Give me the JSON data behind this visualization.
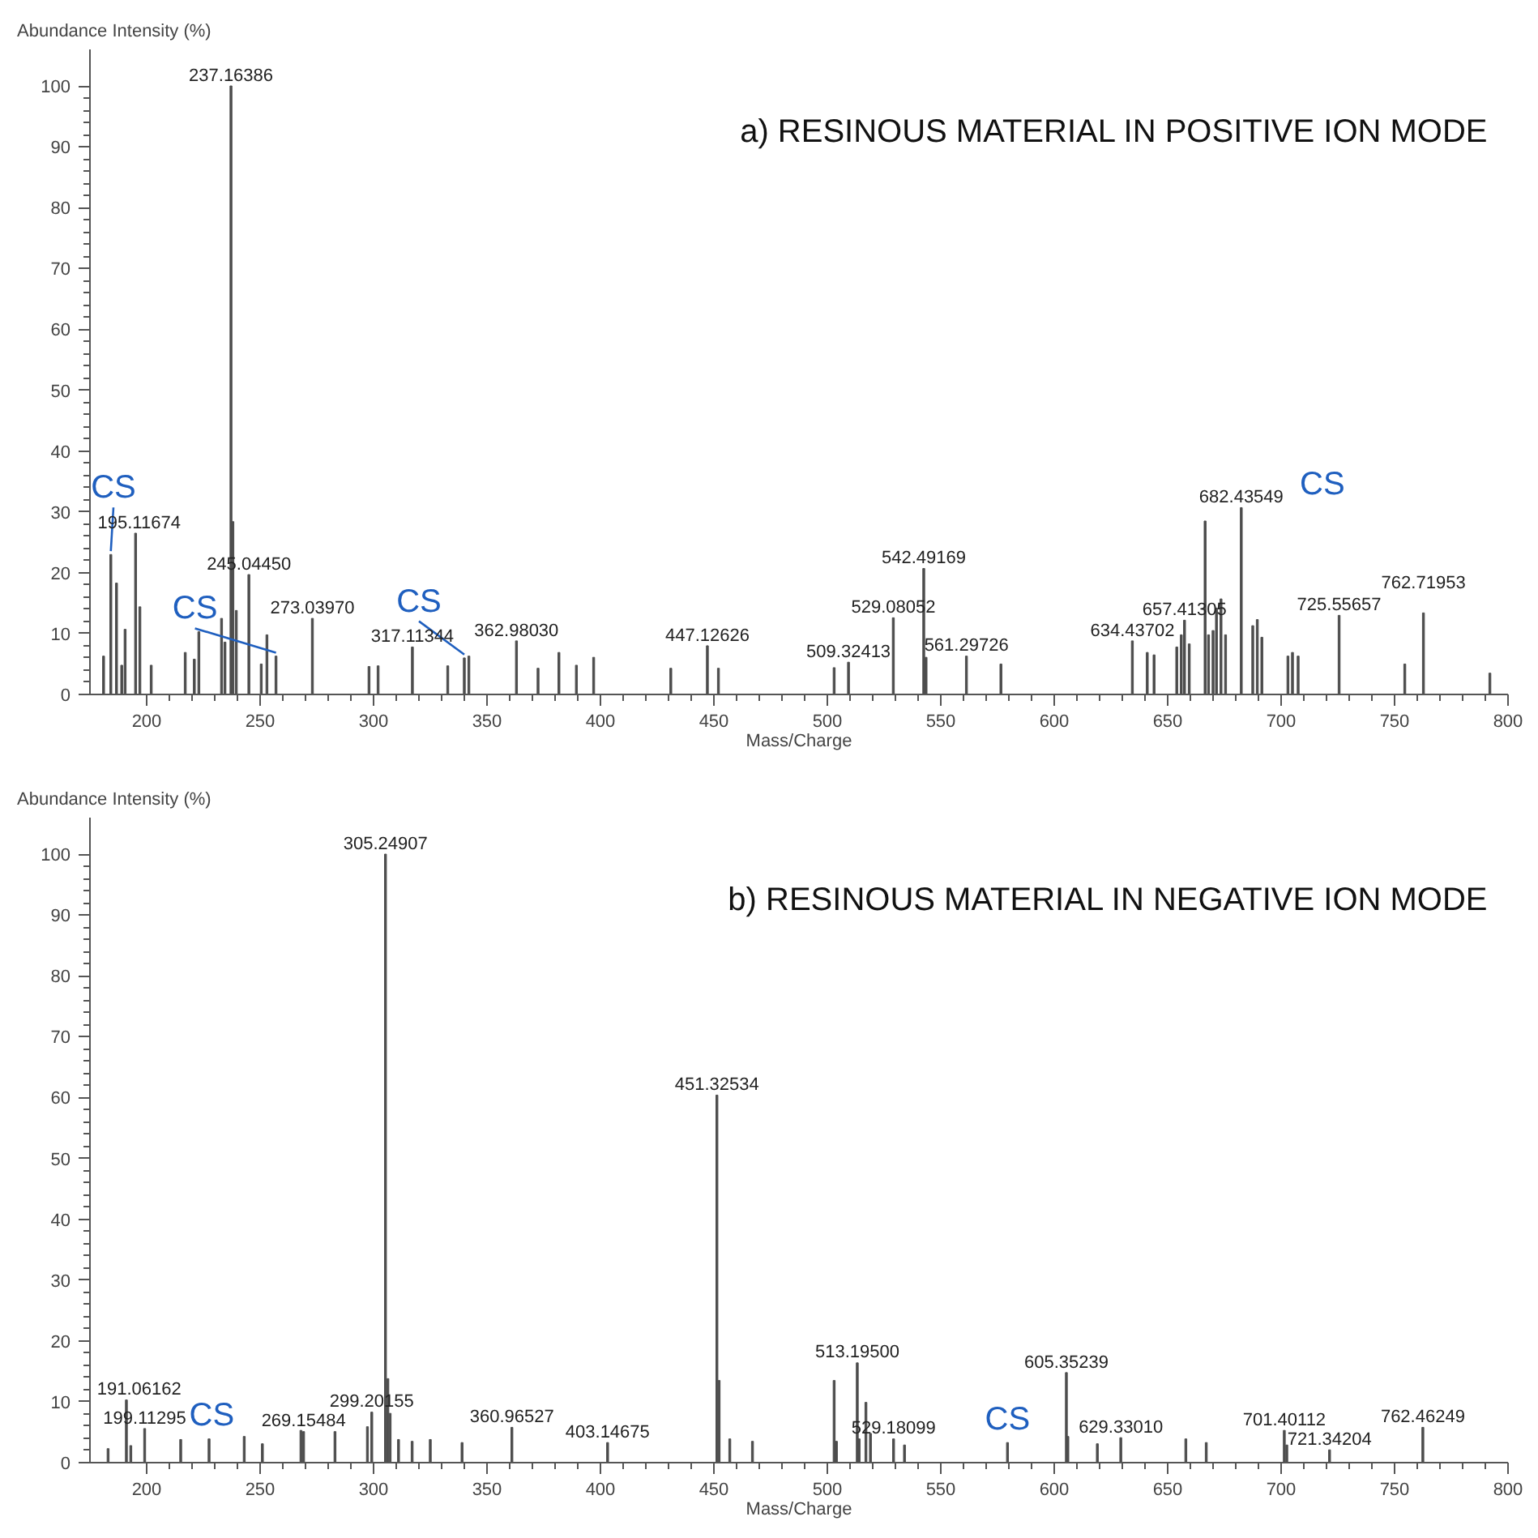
{
  "chart_data": [
    {
      "type": "bar",
      "title": "a) RESINOUS MATERIAL IN POSITIVE ION MODE",
      "ylabel": "Abundance Intensity (%)",
      "xlabel": "Mass/Charge",
      "color": "#4d4d4d",
      "x": [
        181,
        184.2,
        186.7,
        189,
        190.5,
        195.11674,
        197,
        202,
        217,
        221,
        223,
        233,
        234.5,
        237.16386,
        238,
        239.5,
        245.0445,
        250.5,
        253,
        257,
        273.0397,
        298,
        302,
        317.11344,
        332.7,
        340,
        342,
        362.9803,
        372.5,
        381.7,
        389.4,
        397,
        431,
        447.12626,
        452,
        503,
        509.32413,
        529.08052,
        542.49169,
        543.5,
        561.29726,
        576.5,
        634.43702,
        641,
        644,
        654,
        656,
        657.41305,
        659.5,
        666.5,
        668,
        670,
        671.5,
        673.5,
        675.5,
        682.43549,
        687.5,
        689.5,
        691.5,
        703,
        705,
        707.5,
        725.55657,
        754.5,
        762.71953,
        792
      ],
      "values": [
        6.3,
        23.0,
        18.3,
        4.8,
        10.7,
        26.5,
        14.4,
        4.8,
        6.9,
        5.8,
        10.3,
        12.5,
        8.6,
        100,
        28.4,
        13.8,
        19.7,
        5.0,
        9.8,
        6.3,
        12.5,
        4.6,
        4.7,
        7.8,
        4.7,
        6.0,
        6.3,
        8.8,
        4.3,
        6.9,
        4.8,
        6.1,
        4.3,
        8.0,
        4.3,
        4.4,
        5.3,
        12.6,
        20.7,
        6.1,
        6.3,
        5.0,
        8.8,
        6.9,
        6.5,
        7.8,
        9.8,
        12.2,
        8.3,
        28.5,
        9.8,
        10.5,
        14.2,
        15.7,
        9.8,
        30.7,
        11.3,
        12.3,
        9.4,
        6.3,
        6.9,
        6.3,
        13.0,
        5.0,
        13.4,
        3.5
      ],
      "annotations": [
        {
          "text": "237.16386",
          "x": 237.16386,
          "y": 100
        },
        {
          "text": "195.11674",
          "x": 195.11674,
          "y": 26.5
        },
        {
          "text": "245.04450",
          "x": 245.0445,
          "y": 19.7
        },
        {
          "text": "273.03970",
          "x": 273.0397,
          "y": 12.5
        },
        {
          "text": "317.11344",
          "x": 317.11344,
          "y": 7.8
        },
        {
          "text": "362.98030",
          "x": 362.9803,
          "y": 8.8
        },
        {
          "text": "447.12626",
          "x": 447.12626,
          "y": 8.0
        },
        {
          "text": "509.32413",
          "x": 509.32413,
          "y": 5.3
        },
        {
          "text": "529.08052",
          "x": 529.08052,
          "y": 12.6
        },
        {
          "text": "542.49169",
          "x": 542.49169,
          "y": 20.7
        },
        {
          "text": "561.29726",
          "x": 561.29726,
          "y": 6.3
        },
        {
          "text": "634.43702",
          "x": 634.43702,
          "y": 8.8
        },
        {
          "text": "657.41305",
          "x": 657.41305,
          "y": 12.2
        },
        {
          "text": "682.43549",
          "x": 682.43549,
          "y": 30.7
        },
        {
          "text": "725.55657",
          "x": 725.55657,
          "y": 13.0
        },
        {
          "text": "762.71953",
          "x": 762.71953,
          "y": 13.4
        },
        {
          "text": "CS",
          "x": 184.2,
          "y": 23.0
        },
        {
          "text": "CS",
          "x": 257,
          "y": 6.3
        },
        {
          "text": "CS",
          "x": 340,
          "y": 6.0
        },
        {
          "text": "CS",
          "x": 682.43549,
          "y": 30.7
        }
      ],
      "xlim": [
        175,
        800
      ],
      "ylim": [
        0,
        106
      ],
      "xticks": [
        200,
        250,
        300,
        350,
        400,
        450,
        500,
        550,
        600,
        650,
        700,
        750,
        800
      ],
      "yticks": [
        0,
        10,
        20,
        30,
        40,
        50,
        60,
        70,
        80,
        90,
        100
      ]
    },
    {
      "type": "bar",
      "title": "b) RESINOUS MATERIAL IN NEGATIVE ION MODE",
      "ylabel": "Abundance Intensity (%)",
      "xlabel": "Mass/Charge",
      "color": "#4d4d4d",
      "x": [
        183,
        191.06162,
        193,
        199.11295,
        215,
        227.5,
        243,
        251,
        268,
        269.15484,
        283,
        297.3,
        299.20155,
        305.24907,
        306.3,
        307.3,
        311,
        317,
        325,
        339,
        360.96527,
        403.14675,
        451.32534,
        452.3,
        457,
        467,
        503,
        504,
        513.195,
        514,
        517,
        519,
        529.18099,
        534,
        579.4,
        605.35239,
        606,
        619,
        629.3301,
        658,
        667,
        701.40112,
        702.5,
        721.34204,
        762.46249
      ],
      "values": [
        2.3,
        10.3,
        2.8,
        5.6,
        3.8,
        3.9,
        4.3,
        3.1,
        5.3,
        5.1,
        5.1,
        5.9,
        8.3,
        100,
        13.8,
        8.1,
        3.8,
        3.5,
        3.8,
        3.3,
        5.8,
        3.3,
        60.4,
        13.5,
        3.9,
        3.5,
        13.5,
        3.5,
        16.4,
        3.9,
        9.9,
        4.8,
        3.9,
        2.9,
        3.3,
        14.8,
        4.3,
        3.1,
        4.1,
        3.9,
        3.3,
        5.3,
        2.9,
        2.1,
        5.8
      ],
      "annotations": [
        {
          "text": "305.24907",
          "x": 305.24907,
          "y": 100
        },
        {
          "text": "451.32534",
          "x": 451.32534,
          "y": 60.4
        },
        {
          "text": "191.06162",
          "x": 191.06162,
          "y": 10.3
        },
        {
          "text": "199.11295",
          "x": 199.11295,
          "y": 5.6
        },
        {
          "text": "269.15484",
          "x": 269.15484,
          "y": 5.1
        },
        {
          "text": "299.20155",
          "x": 299.20155,
          "y": 8.3
        },
        {
          "text": "360.96527",
          "x": 360.96527,
          "y": 5.8
        },
        {
          "text": "403.14675",
          "x": 403.14675,
          "y": 3.3
        },
        {
          "text": "513.19500",
          "x": 513.195,
          "y": 16.4
        },
        {
          "text": "529.18099",
          "x": 529.18099,
          "y": 3.9
        },
        {
          "text": "605.35239",
          "x": 605.35239,
          "y": 14.8
        },
        {
          "text": "629.33010",
          "x": 629.3301,
          "y": 4.1
        },
        {
          "text": "701.40112",
          "x": 701.40112,
          "y": 5.3
        },
        {
          "text": "721.34204",
          "x": 721.34204,
          "y": 2.1
        },
        {
          "text": "762.46249",
          "x": 762.46249,
          "y": 5.8
        },
        {
          "text": "CS",
          "x": 193,
          "y": 2.8
        },
        {
          "text": "CS",
          "x": 579.4,
          "y": 3.3
        }
      ],
      "xlim": [
        175,
        800
      ],
      "ylim": [
        0,
        106
      ],
      "xticks": [
        200,
        250,
        300,
        350,
        400,
        450,
        500,
        550,
        600,
        650,
        700,
        750,
        800
      ],
      "yticks": [
        0,
        10,
        20,
        30,
        40,
        50,
        60,
        70,
        80,
        90,
        100
      ]
    }
  ]
}
